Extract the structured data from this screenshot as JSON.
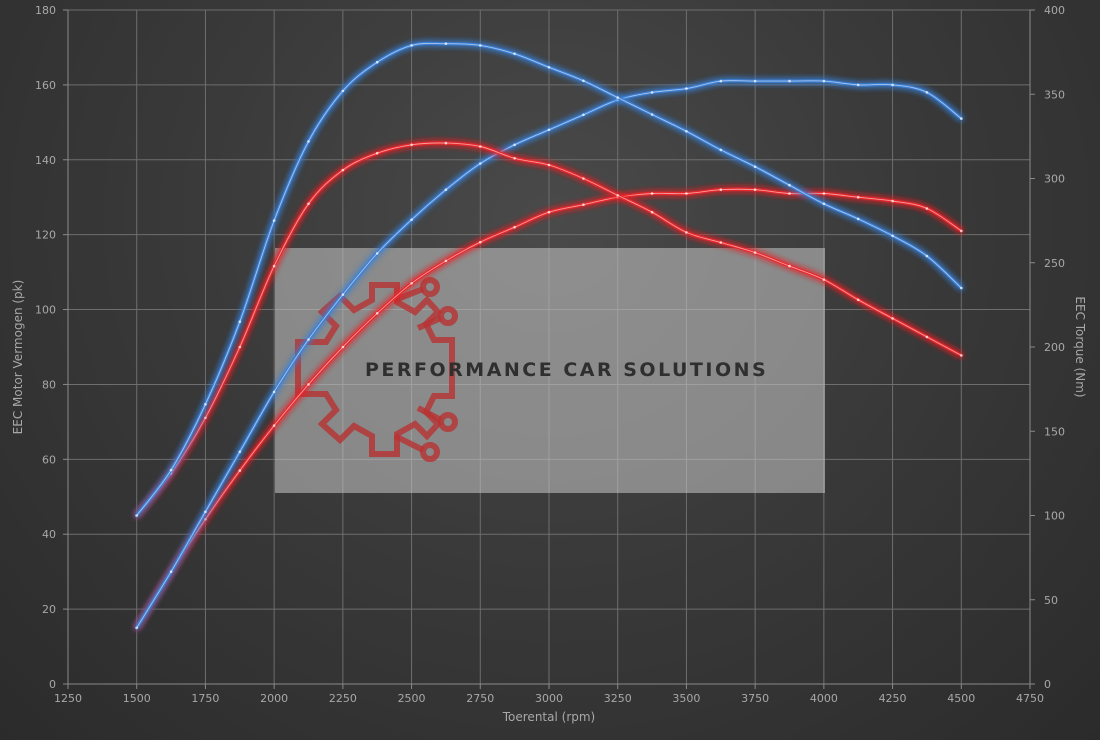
{
  "chart_data": {
    "type": "line",
    "xlabel": "Toerental (rpm)",
    "ylabel_left": "EEC Motor Vermogen (pk)",
    "ylabel_right": "EEC Torque (Nm)",
    "xlim": [
      1250,
      4750
    ],
    "ylim_left": [
      0,
      180
    ],
    "ylim_right": [
      0,
      400
    ],
    "x_ticks": [
      1250,
      1500,
      1750,
      2000,
      2250,
      2500,
      2750,
      3000,
      3250,
      3500,
      3750,
      4000,
      4250,
      4500,
      4750
    ],
    "y_left_ticks": [
      0,
      20,
      40,
      60,
      80,
      100,
      120,
      140,
      160,
      180
    ],
    "y_right_ticks": [
      0,
      50,
      100,
      150,
      200,
      250,
      300,
      350,
      400
    ],
    "grid": true,
    "series": [
      {
        "axis": "left",
        "color": "#e8262a",
        "x": [
          1500,
          1625,
          1750,
          1875,
          2000,
          2125,
          2250,
          2375,
          2500,
          2625,
          2750,
          2875,
          3000,
          3125,
          3250,
          3375,
          3500,
          3625,
          3750,
          3875,
          4000,
          4125,
          4250,
          4375,
          4500
        ],
        "values": [
          15,
          30,
          44,
          57,
          69,
          80,
          90,
          99,
          107,
          113,
          118,
          122,
          126,
          128,
          130,
          131,
          131,
          132,
          132,
          131,
          131,
          130,
          129,
          127,
          121
        ]
      },
      {
        "axis": "left",
        "color": "#3a7fd5",
        "x": [
          1500,
          1625,
          1750,
          1875,
          2000,
          2125,
          2250,
          2375,
          2500,
          2625,
          2750,
          2875,
          3000,
          3125,
          3250,
          3375,
          3500,
          3625,
          3750,
          3875,
          4000,
          4125,
          4250,
          4375,
          4500
        ],
        "values": [
          15,
          30,
          46,
          62,
          78,
          92,
          104,
          115,
          124,
          132,
          139,
          144,
          148,
          152,
          156,
          158,
          159,
          161,
          161,
          161,
          161,
          160,
          160,
          158,
          151
        ]
      },
      {
        "axis": "right",
        "color": "#e8262a",
        "x": [
          1500,
          1625,
          1750,
          1875,
          2000,
          2125,
          2250,
          2375,
          2500,
          2625,
          2750,
          2875,
          3000,
          3125,
          3250,
          3375,
          3500,
          3625,
          3750,
          3875,
          4000,
          4125,
          4250,
          4375,
          4500
        ],
        "values": [
          100,
          125,
          158,
          200,
          248,
          285,
          305,
          315,
          320,
          321,
          319,
          312,
          308,
          300,
          290,
          280,
          268,
          262,
          256,
          248,
          240,
          228,
          217,
          206,
          195
        ]
      },
      {
        "axis": "right",
        "color": "#3a7fd5",
        "x": [
          1500,
          1625,
          1750,
          1875,
          2000,
          2125,
          2250,
          2375,
          2500,
          2625,
          2750,
          2875,
          3000,
          3125,
          3250,
          3375,
          3500,
          3625,
          3750,
          3875,
          4000,
          4125,
          4250,
          4375,
          4500
        ],
        "values": [
          100,
          127,
          166,
          215,
          275,
          322,
          352,
          369,
          379,
          380,
          379,
          374,
          366,
          358,
          348,
          338,
          328,
          317,
          307,
          296,
          285,
          276,
          266,
          254,
          235
        ]
      }
    ]
  },
  "watermark": {
    "brand": "PERFORMANCE CAR SOLUTIONS",
    "logo_icon": "gear-circuit-icon",
    "logo_color": "#b83232"
  }
}
